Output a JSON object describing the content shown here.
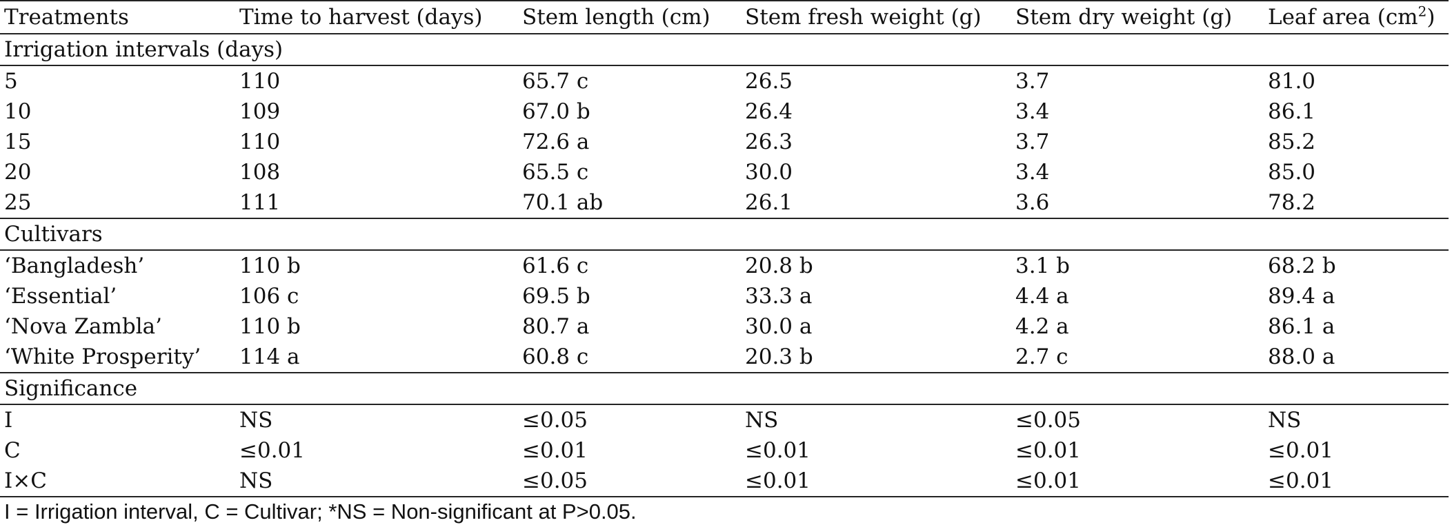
{
  "table": {
    "headers": [
      {
        "text": "Treatments"
      },
      {
        "text": "Time to harvest (days)"
      },
      {
        "text": "Stem length (cm)"
      },
      {
        "text": "Stem fresh weight (g)"
      },
      {
        "text": "Stem dry weight (g)"
      },
      {
        "text": "Leaf area (cm",
        "sup": "2",
        "after": ")"
      }
    ],
    "sections": [
      {
        "label": "Irrigation intervals (days)",
        "rows": [
          [
            "5",
            "110",
            "65.7 c",
            "26.5",
            "3.7",
            "81.0"
          ],
          [
            "10",
            "109",
            "67.0 b",
            "26.4",
            "3.4",
            "86.1"
          ],
          [
            "15",
            "110",
            "72.6 a",
            "26.3",
            "3.7",
            "85.2"
          ],
          [
            "20",
            "108",
            "65.5 c",
            "30.0",
            "3.4",
            "85.0"
          ],
          [
            "25",
            "111",
            "70.1 ab",
            "26.1",
            "3.6",
            "78.2"
          ]
        ]
      },
      {
        "label": "Cultivars",
        "rows": [
          [
            "‘Bangladesh’",
            "110 b",
            "61.6 c",
            "20.8 b",
            "3.1 b",
            "68.2 b"
          ],
          [
            "‘Essential’",
            "106 c",
            "69.5 b",
            "33.3 a",
            "4.4 a",
            "89.4 a"
          ],
          [
            "‘Nova Zambla’",
            "110 b",
            "80.7 a",
            "30.0 a",
            "4.2 a",
            "86.1 a"
          ],
          [
            "‘White Prosperity’",
            "114 a",
            "60.8 c",
            "20.3 b",
            "2.7 c",
            "88.0 a"
          ]
        ]
      },
      {
        "label": "Significance",
        "rows": [
          [
            "I",
            "NS",
            "≤0.05",
            "NS",
            "≤0.05",
            "NS"
          ],
          [
            "C",
            "≤0.01",
            "≤0.01",
            "≤0.01",
            "≤0.01",
            "≤0.01"
          ],
          [
            "I×C",
            "NS",
            "≤0.05",
            "≤0.01",
            "≤0.01",
            "≤0.01"
          ]
        ]
      }
    ]
  },
  "footnote": "I = Irrigation interval, C = Cultivar; *NS = Non-significant at P>0.05."
}
